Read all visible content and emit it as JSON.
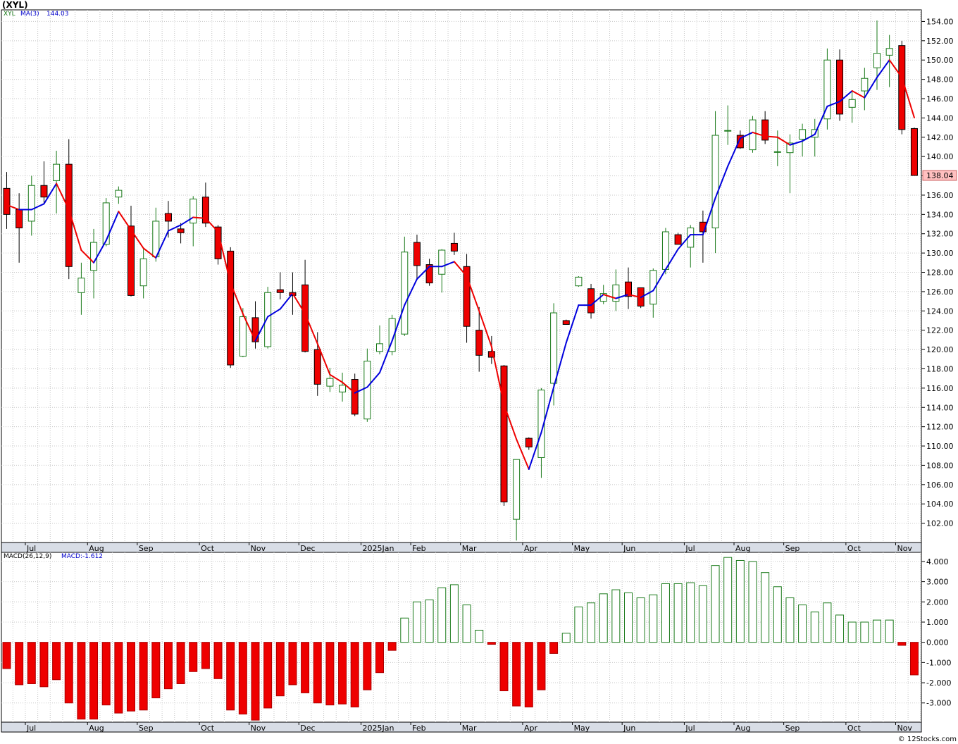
{
  "header": {
    "title": "(XYL)"
  },
  "price_panel": {
    "symbol_label": "XYL",
    "ma_label": "MA(3)",
    "ma_value": "144.03",
    "last_price_label": "138.04"
  },
  "macd_panel": {
    "label": "MACD(26,12,9)",
    "value_label": "MACD:-1.612"
  },
  "footer": {
    "credit": "© 12Stocks.com"
  },
  "colors": {
    "up_candle_border": "#1a7a1a",
    "down_candle_fill": "#ee0000",
    "ma_up": "#0000dd",
    "ma_down": "#ee0000",
    "macd_up": "#1a7a1a",
    "macd_down": "#ee0000",
    "grid": "#c8c8c8",
    "last_price_box": "#ffc0c0"
  },
  "chart_data": [
    {
      "type": "candlestick",
      "title": "(XYL)",
      "period": "weekly",
      "x_tick_labels": [
        "Jul",
        "Aug",
        "Sep",
        "Oct",
        "Nov",
        "Dec",
        "2025Jan",
        "Feb",
        "Mar",
        "Apr",
        "May",
        "Jun",
        "Jul",
        "Aug",
        "Sep",
        "Oct",
        "Nov"
      ],
      "x_tick_weeks": [
        1.5,
        6.5,
        10.5,
        15.5,
        19.5,
        23.5,
        28.5,
        32.5,
        36.5,
        41.5,
        45.5,
        49.5,
        54.5,
        58.5,
        62.5,
        67.5,
        71.5
      ],
      "y_ticks": [
        102,
        104,
        106,
        108,
        110,
        112,
        114,
        116,
        118,
        120,
        122,
        124,
        126,
        128,
        130,
        132,
        134,
        136,
        138,
        140,
        142,
        144,
        146,
        148,
        150,
        152,
        154
      ],
      "y_tick_labels": [
        "102.00",
        "104.00",
        "106.00",
        "108.00",
        "110.00",
        "112.00",
        "114.00",
        "116.00",
        "118.00",
        "120.00",
        "122.00",
        "124.00",
        "126.00",
        "128.00",
        "130.00",
        "132.00",
        "134.00",
        "136.00",
        "138.00",
        "140.00",
        "142.00",
        "144.00",
        "146.00",
        "148.00",
        "150.00",
        "152.00",
        "154.00"
      ],
      "ylim": [
        100.0,
        155.2
      ],
      "grid": true,
      "ohlc": [
        {
          "o": 136.7,
          "h": 138.4,
          "l": 132.5,
          "c": 134.0
        },
        {
          "o": 134.5,
          "h": 136.2,
          "l": 129.0,
          "c": 132.6
        },
        {
          "o": 133.3,
          "h": 138.0,
          "l": 131.8,
          "c": 137.0
        },
        {
          "o": 137.0,
          "h": 139.5,
          "l": 135.1,
          "c": 135.8
        },
        {
          "o": 137.5,
          "h": 140.6,
          "l": 134.1,
          "c": 139.2
        },
        {
          "o": 139.2,
          "h": 141.8,
          "l": 127.3,
          "c": 128.6
        },
        {
          "o": 125.9,
          "h": 129.0,
          "l": 123.6,
          "c": 127.4
        },
        {
          "o": 128.2,
          "h": 132.5,
          "l": 125.3,
          "c": 131.1
        },
        {
          "o": 130.9,
          "h": 135.7,
          "l": 130.7,
          "c": 135.2
        },
        {
          "o": 135.8,
          "h": 136.9,
          "l": 135.1,
          "c": 136.5
        },
        {
          "o": 132.8,
          "h": 134.9,
          "l": 125.5,
          "c": 125.6
        },
        {
          "o": 126.6,
          "h": 130.4,
          "l": 125.3,
          "c": 129.4
        },
        {
          "o": 129.6,
          "h": 134.7,
          "l": 129.1,
          "c": 133.3
        },
        {
          "o": 134.1,
          "h": 135.4,
          "l": 131.6,
          "c": 133.3
        },
        {
          "o": 132.5,
          "h": 133.1,
          "l": 131.0,
          "c": 132.1
        },
        {
          "o": 133.1,
          "h": 135.9,
          "l": 130.7,
          "c": 135.6
        },
        {
          "o": 135.8,
          "h": 137.3,
          "l": 132.7,
          "c": 133.1
        },
        {
          "o": 132.7,
          "h": 132.9,
          "l": 128.8,
          "c": 129.4
        },
        {
          "o": 130.2,
          "h": 130.6,
          "l": 118.1,
          "c": 118.4
        },
        {
          "o": 119.3,
          "h": 124.3,
          "l": 119.2,
          "c": 123.4
        },
        {
          "o": 123.3,
          "h": 125.0,
          "l": 120.1,
          "c": 120.8
        },
        {
          "o": 120.3,
          "h": 126.5,
          "l": 120.1,
          "c": 125.9
        },
        {
          "o": 126.2,
          "h": 128.0,
          "l": 125.2,
          "c": 125.9
        },
        {
          "o": 125.9,
          "h": 128.0,
          "l": 123.6,
          "c": 125.6
        },
        {
          "o": 126.7,
          "h": 129.3,
          "l": 119.7,
          "c": 119.8
        },
        {
          "o": 120.0,
          "h": 121.8,
          "l": 115.2,
          "c": 116.4
        },
        {
          "o": 116.2,
          "h": 118.1,
          "l": 115.6,
          "c": 117.0
        },
        {
          "o": 115.6,
          "h": 117.6,
          "l": 114.6,
          "c": 116.3
        },
        {
          "o": 116.9,
          "h": 117.5,
          "l": 113.1,
          "c": 113.3
        },
        {
          "o": 112.8,
          "h": 120.1,
          "l": 112.5,
          "c": 118.8
        },
        {
          "o": 119.8,
          "h": 122.5,
          "l": 119.5,
          "c": 120.6
        },
        {
          "o": 119.8,
          "h": 123.6,
          "l": 119.4,
          "c": 123.2
        },
        {
          "o": 121.6,
          "h": 131.7,
          "l": 121.4,
          "c": 130.1
        },
        {
          "o": 131.1,
          "h": 131.9,
          "l": 127.2,
          "c": 128.7
        },
        {
          "o": 128.8,
          "h": 129.4,
          "l": 126.6,
          "c": 126.9
        },
        {
          "o": 127.8,
          "h": 130.4,
          "l": 125.9,
          "c": 130.3
        },
        {
          "o": 131.0,
          "h": 132.1,
          "l": 129.8,
          "c": 130.2
        },
        {
          "o": 128.6,
          "h": 129.9,
          "l": 120.7,
          "c": 122.4
        },
        {
          "o": 122.0,
          "h": 124.4,
          "l": 117.7,
          "c": 119.4
        },
        {
          "o": 119.8,
          "h": 121.4,
          "l": 118.5,
          "c": 119.2
        },
        {
          "o": 118.3,
          "h": 118.4,
          "l": 103.8,
          "c": 104.2
        },
        {
          "o": 102.4,
          "h": 108.6,
          "l": 100.2,
          "c": 108.6
        },
        {
          "o": 110.8,
          "h": 110.9,
          "l": 109.6,
          "c": 109.9
        },
        {
          "o": 108.8,
          "h": 116.0,
          "l": 106.7,
          "c": 115.8
        },
        {
          "o": 116.5,
          "h": 124.8,
          "l": 114.2,
          "c": 123.8
        },
        {
          "o": 123.0,
          "h": 123.1,
          "l": 122.6,
          "c": 122.6
        },
        {
          "o": 126.6,
          "h": 127.6,
          "l": 126.5,
          "c": 127.5
        },
        {
          "o": 126.3,
          "h": 126.8,
          "l": 123.2,
          "c": 123.8
        },
        {
          "o": 125.0,
          "h": 126.7,
          "l": 124.7,
          "c": 125.8
        },
        {
          "o": 125.0,
          "h": 128.3,
          "l": 124.0,
          "c": 126.7
        },
        {
          "o": 127.0,
          "h": 128.5,
          "l": 124.2,
          "c": 125.5
        },
        {
          "o": 126.4,
          "h": 126.4,
          "l": 124.3,
          "c": 124.5
        },
        {
          "o": 124.7,
          "h": 128.4,
          "l": 123.3,
          "c": 128.2
        },
        {
          "o": 128.3,
          "h": 132.6,
          "l": 127.8,
          "c": 132.2
        },
        {
          "o": 131.9,
          "h": 132.1,
          "l": 130.9,
          "c": 130.9
        },
        {
          "o": 130.6,
          "h": 132.9,
          "l": 128.5,
          "c": 132.6
        },
        {
          "o": 133.2,
          "h": 134.4,
          "l": 129.0,
          "c": 132.2
        },
        {
          "o": 132.6,
          "h": 144.7,
          "l": 130.0,
          "c": 142.2
        },
        {
          "o": 142.7,
          "h": 145.3,
          "l": 141.2,
          "c": 142.7
        },
        {
          "o": 142.2,
          "h": 142.7,
          "l": 140.8,
          "c": 140.9
        },
        {
          "o": 140.7,
          "h": 144.2,
          "l": 140.4,
          "c": 143.8
        },
        {
          "o": 143.8,
          "h": 144.7,
          "l": 141.3,
          "c": 141.7
        },
        {
          "o": 140.5,
          "h": 142.7,
          "l": 139.0,
          "c": 140.5
        },
        {
          "o": 140.4,
          "h": 142.3,
          "l": 136.2,
          "c": 141.4
        },
        {
          "o": 141.8,
          "h": 143.4,
          "l": 140.0,
          "c": 142.8
        },
        {
          "o": 142.0,
          "h": 143.9,
          "l": 140.0,
          "c": 142.8
        },
        {
          "o": 143.9,
          "h": 151.2,
          "l": 142.8,
          "c": 150.0
        },
        {
          "o": 150.0,
          "h": 151.1,
          "l": 143.7,
          "c": 144.4
        },
        {
          "o": 145.1,
          "h": 146.8,
          "l": 143.5,
          "c": 145.9
        },
        {
          "o": 146.8,
          "h": 149.2,
          "l": 144.8,
          "c": 148.1
        },
        {
          "o": 149.2,
          "h": 154.1,
          "l": 146.9,
          "c": 150.7
        },
        {
          "o": 150.5,
          "h": 152.6,
          "l": 147.2,
          "c": 151.2
        },
        {
          "o": 151.5,
          "h": 152.0,
          "l": 142.3,
          "c": 142.8
        },
        {
          "o": 142.9,
          "h": 143.0,
          "l": 138.04,
          "c": 138.04
        }
      ],
      "ma_series": {
        "name": "MA(3)",
        "values": [
          135.0,
          134.5,
          134.5,
          135.1,
          137.2,
          134.5,
          130.3,
          129.0,
          131.3,
          134.3,
          132.4,
          130.5,
          129.5,
          132.3,
          132.9,
          133.7,
          133.6,
          132.2,
          126.9,
          123.7,
          120.9,
          123.4,
          124.2,
          125.8,
          123.7,
          120.6,
          117.4,
          116.6,
          115.5,
          116.1,
          117.6,
          120.9,
          124.6,
          127.3,
          128.6,
          128.6,
          129.1,
          127.6,
          124.0,
          120.3,
          114.3,
          110.7,
          107.6,
          111.4,
          116.1,
          120.7,
          124.6,
          124.6,
          125.7,
          125.3,
          125.7,
          125.4,
          126.1,
          128.3,
          130.4,
          131.9,
          131.9,
          135.7,
          139.0,
          141.9,
          142.5,
          142.1,
          142.0,
          141.2,
          141.6,
          142.3,
          145.2,
          145.7,
          146.8,
          146.1,
          148.2,
          150.0,
          148.2,
          144.03
        ]
      }
    },
    {
      "type": "bar",
      "title": "MACD(26,12,9)",
      "subtitle": "MACD:-1.612",
      "y_ticks": [
        -3,
        -2,
        -1,
        0,
        1,
        2,
        3,
        4
      ],
      "y_tick_labels": [
        "-3.000",
        "-2.000",
        "-1.000",
        "0.000",
        "1.000",
        "2.000",
        "3.000",
        "4.000"
      ],
      "ylim": [
        -3.95,
        4.45
      ],
      "values": [
        -1.3,
        -2.1,
        -2.05,
        -2.2,
        -1.85,
        -3.0,
        -3.8,
        -3.8,
        -3.1,
        -3.5,
        -3.4,
        -3.35,
        -2.75,
        -2.3,
        -2.05,
        -1.45,
        -1.3,
        -1.8,
        -3.35,
        -3.55,
        -3.85,
        -3.25,
        -2.65,
        -2.1,
        -2.5,
        -3.0,
        -3.1,
        -3.05,
        -3.2,
        -2.35,
        -1.5,
        -0.4,
        1.2,
        2.0,
        2.1,
        2.7,
        2.85,
        1.85,
        0.6,
        -0.1,
        -2.4,
        -3.15,
        -3.2,
        -2.35,
        -0.55,
        0.45,
        1.75,
        1.95,
        2.4,
        2.6,
        2.45,
        2.2,
        2.35,
        2.9,
        2.9,
        2.95,
        2.8,
        3.8,
        4.2,
        4.05,
        4.0,
        3.45,
        2.75,
        2.2,
        1.85,
        1.5,
        1.95,
        1.35,
        1.0,
        1.0,
        1.1,
        1.1,
        -0.15,
        -1.612
      ]
    }
  ]
}
